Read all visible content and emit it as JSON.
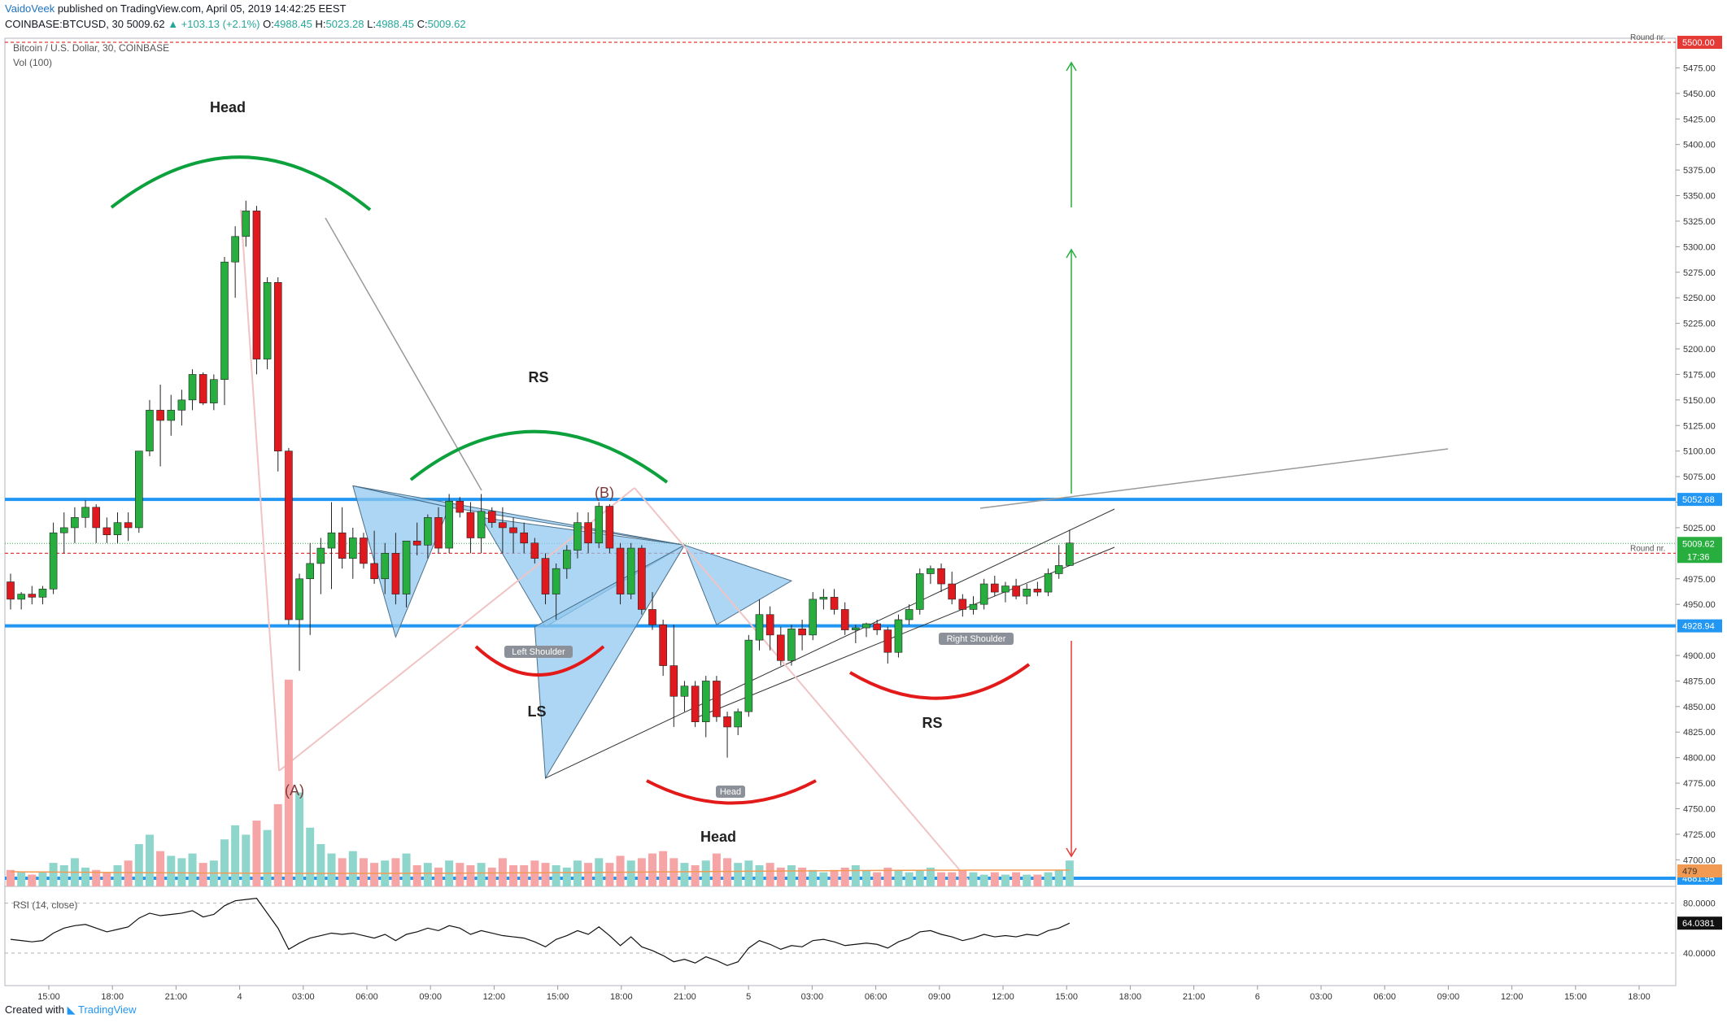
{
  "header": {
    "author": "VaidoVeek",
    "published_text": "published on TradingView.com, April 05, 2019 14:42:25 EEST",
    "symbol": "COINBASE:BTCUSD, 30",
    "last": "5009.62",
    "change": "▲ +103.13 (+2.1%)",
    "o_label": "O:",
    "o_val": "4988.45",
    "h_label": "H:",
    "h_val": "5023.28",
    "l_label": "L:",
    "l_val": "4988.45",
    "c_label": "C:",
    "c_val": "5009.62"
  },
  "legend": {
    "main": "Bitcoin / U.S. Dollar, 30, COINBASE",
    "volume": "Vol (100)",
    "rsi": "RSI (14, close)"
  },
  "footer": {
    "created_with": "Created with",
    "brand": "TradingView"
  },
  "colors": {
    "up": "#26a69a",
    "up_candle": "#27ae3f",
    "down_candle": "#e0191f",
    "level_line": "#2196f3",
    "round_line": "#e53935",
    "pattern_fill": "#90c8ef",
    "green_arc": "#0ca13c",
    "red_arc": "#e31a1a"
  },
  "chart_data": {
    "type": "candlestick",
    "price_axis": {
      "ticks": [
        "5475.00",
        "5450.00",
        "5425.00",
        "5400.00",
        "5375.00",
        "5350.00",
        "5325.00",
        "5300.00",
        "5275.00",
        "5250.00",
        "5225.00",
        "5200.00",
        "5175.00",
        "5150.00",
        "5125.00",
        "5100.00",
        "5075.00",
        "5050.00",
        "5025.00",
        "4975.00",
        "4950.00",
        "4900.00",
        "4875.00",
        "4850.00",
        "4825.00",
        "4800.00",
        "4775.00",
        "4750.00",
        "4725.00",
        "4700.00"
      ],
      "ylim": [
        4674,
        5504
      ]
    },
    "time_axis": {
      "ticks": [
        "15:00",
        "18:00",
        "21:00",
        "4",
        "03:00",
        "06:00",
        "09:00",
        "12:00",
        "15:00",
        "18:00",
        "21:00",
        "5",
        "03:00",
        "06:00",
        "09:00",
        "12:00",
        "15:00",
        "18:00",
        "21:00",
        "6",
        "03:00",
        "06:00",
        "09:00",
        "12:00",
        "15:00",
        "18:00"
      ]
    },
    "rsi_axis": {
      "ticks": [
        "80.0000",
        "40.0000"
      ],
      "ylim": [
        23,
        87
      ]
    },
    "candles": [
      [
        4972,
        4980,
        4945,
        4955
      ],
      [
        4955,
        4962,
        4945,
        4960
      ],
      [
        4960,
        4968,
        4950,
        4957
      ],
      [
        4957,
        4968,
        4950,
        4965
      ],
      [
        4965,
        5030,
        4960,
        5020
      ],
      [
        5020,
        5040,
        5000,
        5025
      ],
      [
        5025,
        5045,
        5010,
        5035
      ],
      [
        5035,
        5052,
        5025,
        5045
      ],
      [
        5045,
        5048,
        5010,
        5025
      ],
      [
        5025,
        5035,
        5010,
        5018
      ],
      [
        5018,
        5040,
        5010,
        5030
      ],
      [
        5030,
        5040,
        5012,
        5025
      ],
      [
        5025,
        5100,
        5020,
        5100
      ],
      [
        5100,
        5150,
        5095,
        5140
      ],
      [
        5140,
        5165,
        5085,
        5130
      ],
      [
        5130,
        5155,
        5115,
        5140
      ],
      [
        5140,
        5160,
        5125,
        5150
      ],
      [
        5150,
        5180,
        5140,
        5175
      ],
      [
        5175,
        5177,
        5145,
        5147
      ],
      [
        5147,
        5175,
        5140,
        5170
      ],
      [
        5170,
        5290,
        5145,
        5285
      ],
      [
        5285,
        5320,
        5250,
        5310
      ],
      [
        5310,
        5345,
        5300,
        5335
      ],
      [
        5335,
        5340,
        5175,
        5190
      ],
      [
        5190,
        5270,
        5180,
        5265
      ],
      [
        5265,
        5270,
        5080,
        5100
      ],
      [
        5100,
        5103,
        4930,
        4935
      ],
      [
        4935,
        4980,
        4885,
        4975
      ],
      [
        4975,
        5010,
        4920,
        4990
      ],
      [
        4990,
        5015,
        4960,
        5005
      ],
      [
        5005,
        5050,
        4965,
        5020
      ],
      [
        5020,
        5045,
        4985,
        4995
      ],
      [
        4995,
        5025,
        4975,
        5015
      ],
      [
        5015,
        5020,
        4985,
        4990
      ],
      [
        4990,
        5022,
        4970,
        4975
      ],
      [
        4975,
        5010,
        4960,
        5000
      ],
      [
        5000,
        5020,
        4950,
        4960
      ],
      [
        4960,
        5012,
        4947,
        5012
      ],
      [
        5012,
        5030,
        4998,
        5008
      ],
      [
        5008,
        5038,
        4995,
        5035
      ],
      [
        5035,
        5045,
        5000,
        5005
      ],
      [
        5005,
        5058,
        5000,
        5051
      ],
      [
        5051,
        5055,
        5035,
        5040
      ],
      [
        5040,
        5050,
        5000,
        5015
      ],
      [
        5015,
        5058,
        5000,
        5041
      ],
      [
        5041,
        5045,
        5025,
        5030
      ],
      [
        5030,
        5045,
        5000,
        5025
      ],
      [
        5025,
        5035,
        5000,
        5020
      ],
      [
        5020,
        5030,
        5000,
        5010
      ],
      [
        5010,
        5015,
        4990,
        4995
      ],
      [
        4995,
        5000,
        4950,
        4960
      ],
      [
        4960,
        4990,
        4935,
        4985
      ],
      [
        4985,
        5008,
        4975,
        5003
      ],
      [
        5003,
        5040,
        4995,
        5030
      ],
      [
        5030,
        5040,
        5000,
        5010
      ],
      [
        5010,
        5050,
        5005,
        5046
      ],
      [
        5046,
        5048,
        5000,
        5005
      ],
      [
        5005,
        5010,
        4950,
        4960
      ],
      [
        4960,
        5010,
        4955,
        5005
      ],
      [
        5005,
        5008,
        4940,
        4945
      ],
      [
        4945,
        4962,
        4925,
        4930
      ],
      [
        4930,
        4935,
        4880,
        4890
      ],
      [
        4890,
        4930,
        4830,
        4860
      ],
      [
        4860,
        4875,
        4845,
        4870
      ],
      [
        4870,
        4875,
        4830,
        4835
      ],
      [
        4835,
        4880,
        4820,
        4875
      ],
      [
        4875,
        4880,
        4835,
        4840
      ],
      [
        4840,
        4845,
        4800,
        4830
      ],
      [
        4830,
        4848,
        4822,
        4845
      ],
      [
        4845,
        4920,
        4840,
        4915
      ],
      [
        4915,
        4955,
        4905,
        4940
      ],
      [
        4940,
        4948,
        4905,
        4920
      ],
      [
        4920,
        4928,
        4890,
        4895
      ],
      [
        4895,
        4930,
        4890,
        4926
      ],
      [
        4926,
        4935,
        4905,
        4920
      ],
      [
        4920,
        4962,
        4915,
        4955
      ],
      [
        4955,
        4965,
        4945,
        4957
      ],
      [
        4957,
        4965,
        4940,
        4945
      ],
      [
        4945,
        4952,
        4920,
        4925
      ],
      [
        4925,
        4930,
        4912,
        4927
      ],
      [
        4927,
        4932,
        4918,
        4931
      ],
      [
        4931,
        4935,
        4920,
        4925
      ],
      [
        4925,
        4928,
        4892,
        4903
      ],
      [
        4903,
        4940,
        4898,
        4935
      ],
      [
        4935,
        4950,
        4930,
        4945
      ],
      [
        4945,
        4985,
        4940,
        4980
      ],
      [
        4980,
        4988,
        4970,
        4985
      ],
      [
        4985,
        4990,
        4962,
        4970
      ],
      [
        4970,
        4982,
        4950,
        4955
      ],
      [
        4955,
        4960,
        4938,
        4945
      ],
      [
        4945,
        4958,
        4940,
        4950
      ],
      [
        4950,
        4975,
        4945,
        4970
      ],
      [
        4970,
        4978,
        4958,
        4962
      ],
      [
        4962,
        4972,
        4952,
        4968
      ],
      [
        4968,
        4975,
        4955,
        4958
      ],
      [
        4958,
        4970,
        4950,
        4965
      ],
      [
        4965,
        4972,
        4958,
        4962
      ],
      [
        4962,
        4985,
        4958,
        4980
      ],
      [
        4980,
        5008,
        4975,
        4988
      ],
      [
        4988,
        5023,
        4988,
        5010
      ]
    ],
    "volumes": [
      7,
      6,
      5,
      6,
      10,
      9,
      12,
      8,
      7,
      6,
      9,
      11,
      18,
      22,
      15,
      13,
      12,
      14,
      10,
      11,
      20,
      26,
      22,
      28,
      24,
      35,
      88,
      40,
      25,
      18,
      14,
      12,
      15,
      12,
      10,
      11,
      12,
      14,
      9,
      10,
      8,
      11,
      10,
      9,
      10,
      8,
      12,
      9,
      9,
      11,
      10,
      9,
      8,
      11,
      10,
      12,
      10,
      13,
      11,
      12,
      14,
      15,
      12,
      10,
      9,
      11,
      14,
      12,
      10,
      11,
      9,
      10,
      8,
      9,
      8,
      7,
      6,
      7,
      8,
      9,
      7,
      6,
      8,
      7,
      6,
      7,
      8,
      6,
      6,
      7,
      6,
      5,
      6,
      5,
      6,
      5,
      5,
      6,
      7,
      11
    ],
    "volume_ma_label": "479",
    "rsi": [
      51,
      50,
      49,
      50,
      56,
      60,
      62,
      63,
      60,
      57,
      59,
      61,
      68,
      72,
      70,
      71,
      72,
      74,
      69,
      71,
      78,
      82,
      83,
      84,
      72,
      60,
      43,
      48,
      52,
      54,
      56,
      55,
      56,
      54,
      52,
      55,
      50,
      55,
      57,
      60,
      58,
      62,
      60,
      55,
      58,
      56,
      54,
      53,
      52,
      49,
      45,
      51,
      54,
      58,
      55,
      61,
      54,
      46,
      53,
      45,
      42,
      38,
      33,
      35,
      32,
      37,
      34,
      30,
      33,
      44,
      50,
      47,
      43,
      46,
      45,
      50,
      51,
      49,
      46,
      47,
      48,
      47,
      44,
      49,
      52,
      57,
      58,
      55,
      53,
      50,
      52,
      55,
      53,
      54,
      53,
      55,
      54,
      58,
      60,
      64
    ],
    "levels": [
      {
        "label": "5052.68"
      },
      {
        "label": "4928.94"
      },
      {
        "label": "4681.95"
      }
    ],
    "round_levels": [
      {
        "label": "5500.00",
        "tag": "Round nr."
      },
      {
        "label": "5000.00",
        "tag": "Round nr."
      }
    ],
    "last_price_label": "5009.62",
    "countdown": "17:36",
    "rsi_last": "64.0381",
    "annotations": {
      "head_top": "Head",
      "rs_top": "RS",
      "b_point": "(B)",
      "a_point": "(A)",
      "left_shoulder": "Left Shoulder",
      "ls": "LS",
      "head_tag": "Head",
      "head_bottom": "Head",
      "right_shoulder": "Right Shoulder",
      "rs_bottom": "RS"
    }
  }
}
